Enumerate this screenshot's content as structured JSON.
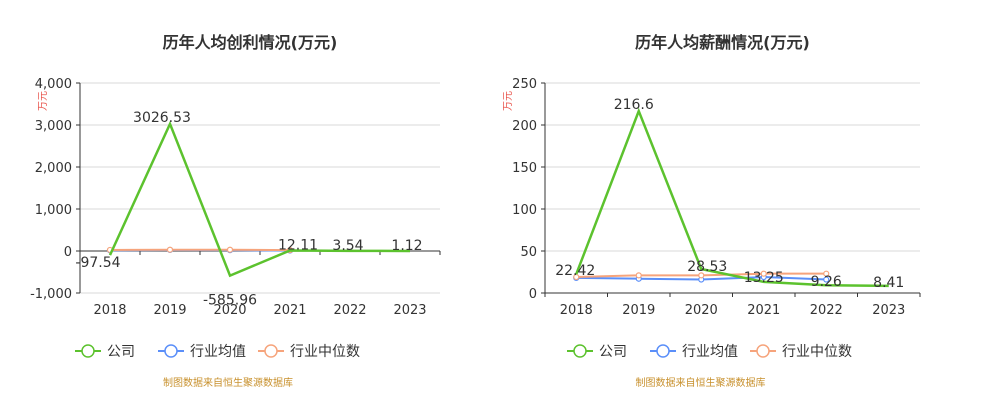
{
  "chart_data": [
    {
      "type": "line",
      "title": "历年人均创利情况(万元)",
      "ylabel": "万元",
      "categories": [
        "2018",
        "2019",
        "2020",
        "2021",
        "2022",
        "2023"
      ],
      "ylim": [
        -1000,
        4000
      ],
      "yticks": [
        -1000,
        0,
        1000,
        2000,
        3000,
        4000
      ],
      "ytick_labels": [
        "-1,000",
        "0",
        "1,000",
        "2,000",
        "3,000",
        "4,000"
      ],
      "grid": true,
      "legend_position": "bottom-left",
      "series": [
        {
          "name": "公司",
          "values": [
            -97.54,
            3026.53,
            -585.96,
            12.11,
            3.54,
            1.12
          ],
          "color": "#5cc22e",
          "labels": [
            "-97.54",
            "3026.53",
            "-585.96",
            "12.11",
            "3.54",
            "1.12"
          ],
          "markers": false
        },
        {
          "name": "行业均值",
          "values": [
            15,
            25,
            20,
            10,
            null,
            null
          ],
          "color": "#5b8ff9",
          "markers": true
        },
        {
          "name": "行业中位数",
          "values": [
            25,
            30,
            30,
            20,
            null,
            null
          ],
          "color": "#f6a47c",
          "markers": true
        }
      ],
      "source": "制图数据来自恒生聚源数据库"
    },
    {
      "type": "line",
      "title": "历年人均薪酬情况(万元)",
      "ylabel": "万元",
      "categories": [
        "2018",
        "2019",
        "2020",
        "2021",
        "2022",
        "2023"
      ],
      "ylim": [
        0,
        250
      ],
      "yticks": [
        0,
        50,
        100,
        150,
        200,
        250
      ],
      "ytick_labels": [
        "0",
        "50",
        "100",
        "150",
        "200",
        "250"
      ],
      "grid": true,
      "legend_position": "bottom-left",
      "series": [
        {
          "name": "公司",
          "values": [
            22.42,
            216.6,
            28.53,
            13.25,
            9.26,
            8.41
          ],
          "color": "#5cc22e",
          "labels": [
            "22.42",
            "216.6",
            "28.53",
            "13.25",
            "9.26",
            "8.41"
          ],
          "markers": false
        },
        {
          "name": "行业均值",
          "values": [
            18,
            17,
            16,
            19,
            16,
            null
          ],
          "color": "#5b8ff9",
          "markers": true
        },
        {
          "name": "行业中位数",
          "values": [
            19,
            21,
            21,
            23,
            23,
            null
          ],
          "color": "#f6a47c",
          "markers": true
        }
      ],
      "source": "制图数据来自恒生聚源数据库"
    }
  ]
}
